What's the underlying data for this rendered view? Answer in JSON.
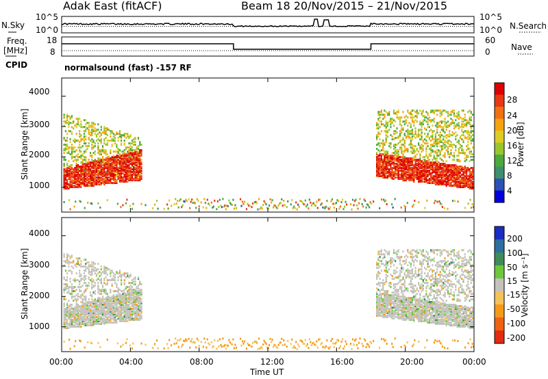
{
  "header": {
    "station": "Adak East (fitACF)",
    "beam_and_dates": "Beam 18  20/Nov/2015 – 21/Nov/2015"
  },
  "noise_panel": {
    "left_label": "N.Sky",
    "right_label": "N.Search",
    "left_ticks": [
      "10^5",
      "10^0"
    ],
    "right_ticks": [
      "10^5",
      "10^0"
    ]
  },
  "freq_panel": {
    "left_label_1": "Freq.",
    "left_label_2": "[MHz]",
    "right_label": "Nave",
    "left_ticks": [
      "18",
      "8"
    ],
    "right_ticks": [
      "60",
      "0"
    ]
  },
  "cpid_panel": {
    "label": "CPID",
    "mode": "normalsound (fast) -157 RF"
  },
  "chart_data": [
    {
      "type": "heatmap",
      "name": "power-panel",
      "ylabel": "Slant Range [km]",
      "yticks": [
        "4000",
        "3000",
        "2000",
        "1000"
      ],
      "ytick_values": [
        4000,
        3000,
        2000,
        1000
      ],
      "ylim": [
        180,
        4600
      ],
      "colorbar_label": "Power [dB]",
      "colorbar_ticks": [
        "28",
        "24",
        "20",
        "16",
        "12",
        "8",
        "4"
      ],
      "colorbar_values": [
        28,
        24,
        20,
        16,
        12,
        8,
        4
      ],
      "colorbar_range": [
        0,
        32
      ],
      "colors": [
        "#0000dd",
        "#2a52b5",
        "#3d8f6e",
        "#4aaa3c",
        "#99c62c",
        "#ddcc22",
        "#f4a40e",
        "#f07012",
        "#e83814",
        "#dd0000"
      ]
    },
    {
      "type": "heatmap",
      "name": "velocity-panel",
      "ylabel": "Slant Range [km]",
      "yticks": [
        "4000",
        "3000",
        "2000",
        "1000"
      ],
      "ytick_values": [
        4000,
        3000,
        2000,
        1000
      ],
      "ylim": [
        180,
        4600
      ],
      "colorbar_label": "Velocity [m s⁻¹]",
      "colorbar_ticks": [
        "200",
        "100",
        "50",
        "15",
        "-15",
        "-50",
        "-100",
        "-200"
      ],
      "colors": [
        "#1a2ec2",
        "#2c6fa0",
        "#3e8c5a",
        "#6cc93a",
        "#c3c3bb",
        "#f4c25a",
        "#f59a18",
        "#ef6312",
        "#e32b12"
      ]
    }
  ],
  "x_axis": {
    "label": "Time UT",
    "ticks": [
      "00:00",
      "04:00",
      "08:00",
      "12:00",
      "16:00",
      "20:00",
      "00:00"
    ],
    "tick_hours": [
      0,
      4,
      8,
      12,
      16,
      20,
      24
    ],
    "xlim_hours": [
      0,
      24
    ]
  }
}
